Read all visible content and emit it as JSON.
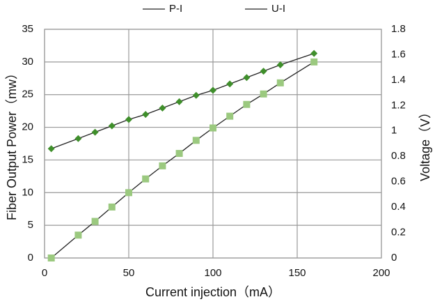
{
  "chart_data": {
    "type": "line",
    "x_label": "Current injection（mA）",
    "y_label": "Fiber Output Power（mw）",
    "y2_label": "Voltage（V）",
    "xlim": [
      0,
      200
    ],
    "xticks": [
      0,
      50,
      100,
      150,
      200
    ],
    "ylim": [
      0,
      35
    ],
    "yticks": [
      0,
      5,
      10,
      15,
      20,
      25,
      30,
      35
    ],
    "y2lim": [
      0,
      1.8
    ],
    "y2ticks": [
      0,
      0.2,
      0.4,
      0.6,
      0.8,
      1,
      1.2,
      1.4,
      1.6,
      1.8
    ],
    "grid": true,
    "legend": "top",
    "series": [
      {
        "name": "P-I",
        "color": "#9bc97f",
        "line_color": "#222222",
        "marker": "square",
        "x": [
          4,
          20,
          30,
          40,
          50,
          60,
          70,
          80,
          90,
          100,
          110,
          120,
          130,
          140,
          160
        ],
        "values": [
          0,
          3.5,
          5.6,
          7.8,
          10,
          12.1,
          14.1,
          16,
          18,
          19.9,
          21.7,
          23.5,
          25.1,
          26.8,
          30
        ]
      },
      {
        "name": "U-I",
        "color": "#3f8f2b",
        "line_color": "#222222",
        "marker": "diamond",
        "axis": "y2",
        "x": [
          4,
          20,
          30,
          40,
          50,
          60,
          70,
          80,
          90,
          100,
          110,
          120,
          130,
          140,
          160
        ],
        "values": [
          0.86,
          0.94,
          0.99,
          1.04,
          1.09,
          1.13,
          1.18,
          1.23,
          1.28,
          1.32,
          1.37,
          1.42,
          1.47,
          1.52,
          1.61
        ]
      }
    ]
  }
}
